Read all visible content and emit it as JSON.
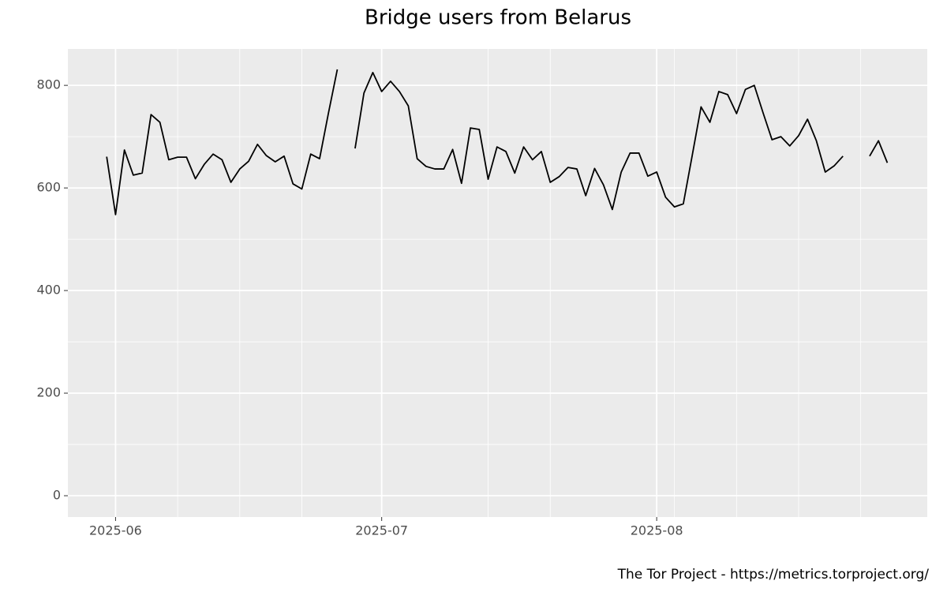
{
  "chart_data": {
    "type": "line",
    "title": "Bridge users from Belarus",
    "caption": "The Tor Project - https://metrics.torproject.org/",
    "x": [
      "2025-05-31",
      "2025-06-01",
      "2025-06-02",
      "2025-06-03",
      "2025-06-04",
      "2025-06-05",
      "2025-06-06",
      "2025-06-07",
      "2025-06-08",
      "2025-06-09",
      "2025-06-10",
      "2025-06-11",
      "2025-06-12",
      "2025-06-13",
      "2025-06-14",
      "2025-06-15",
      "2025-06-16",
      "2025-06-17",
      "2025-06-18",
      "2025-06-19",
      "2025-06-20",
      "2025-06-21",
      "2025-06-22",
      "2025-06-23",
      "2025-06-24",
      "2025-06-25",
      "2025-06-26",
      "2025-06-27",
      "2025-06-28",
      "2025-06-29",
      "2025-06-30",
      "2025-07-01",
      "2025-07-02",
      "2025-07-03",
      "2025-07-04",
      "2025-07-05",
      "2025-07-06",
      "2025-07-07",
      "2025-07-08",
      "2025-07-09",
      "2025-07-10",
      "2025-07-11",
      "2025-07-12",
      "2025-07-13",
      "2025-07-14",
      "2025-07-15",
      "2025-07-16",
      "2025-07-17",
      "2025-07-18",
      "2025-07-19",
      "2025-07-20",
      "2025-07-21",
      "2025-07-22",
      "2025-07-23",
      "2025-07-24",
      "2025-07-25",
      "2025-07-26",
      "2025-07-27",
      "2025-07-28",
      "2025-07-29",
      "2025-07-30",
      "2025-07-31",
      "2025-08-01",
      "2025-08-02",
      "2025-08-03",
      "2025-08-04",
      "2025-08-05",
      "2025-08-06",
      "2025-08-07",
      "2025-08-08",
      "2025-08-09",
      "2025-08-10",
      "2025-08-11",
      "2025-08-12",
      "2025-08-13",
      "2025-08-14",
      "2025-08-15",
      "2025-08-16",
      "2025-08-17",
      "2025-08-18",
      "2025-08-19",
      "2025-08-20",
      "2025-08-21",
      "2025-08-22",
      "2025-08-23",
      "2025-08-24",
      "2025-08-25",
      "2025-08-26",
      "2025-08-27"
    ],
    "series": [
      {
        "name": "Bridge users",
        "color": "#000000",
        "values": [
          661,
          548,
          674,
          625,
          629,
          743,
          728,
          655,
          660,
          660,
          618,
          646,
          666,
          655,
          611,
          637,
          652,
          685,
          663,
          651,
          662,
          608,
          598,
          666,
          657,
          746,
          831,
          null,
          677,
          785,
          825,
          788,
          808,
          788,
          760,
          657,
          642,
          637,
          637,
          675,
          609,
          717,
          714,
          617,
          680,
          671,
          629,
          680,
          655,
          671,
          611,
          622,
          640,
          637,
          585,
          638,
          606,
          558,
          631,
          668,
          668,
          623,
          631,
          582,
          563,
          569,
          663,
          758,
          728,
          788,
          782,
          745,
          792,
          800,
          746,
          694,
          700,
          682,
          702,
          734,
          692,
          631,
          643,
          662,
          null,
          null,
          662,
          692,
          649
        ]
      }
    ],
    "xlim": [
      "2025-05-26T15:00",
      "2025-08-31T12:00"
    ],
    "xticks": [
      {
        "value": "2025-06-01",
        "label": "2025-06"
      },
      {
        "value": "2025-07-01",
        "label": "2025-07"
      },
      {
        "value": "2025-08-01",
        "label": "2025-08"
      }
    ],
    "xminor": [
      "2025-06-08",
      "2025-06-15",
      "2025-06-22",
      "2025-07-13",
      "2025-07-20",
      "2025-08-03",
      "2025-08-10",
      "2025-08-17",
      "2025-08-24"
    ],
    "ylim": [
      -41.5,
      871
    ],
    "yticks": [
      0,
      200,
      400,
      600,
      800
    ],
    "yminor": [
      100,
      300,
      500,
      700
    ],
    "grid": true
  }
}
